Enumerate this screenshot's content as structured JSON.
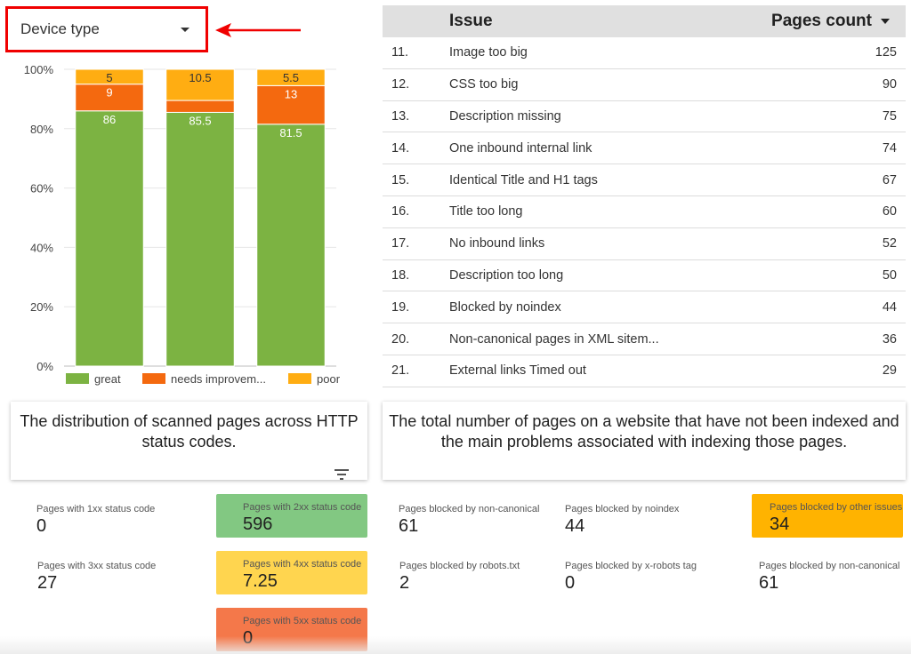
{
  "dropdown": {
    "label": "Device type"
  },
  "chart_data": {
    "type": "bar",
    "stacked": true,
    "categories": [
      "",
      "",
      ""
    ],
    "series": [
      {
        "name": "great",
        "values": [
          86,
          85.5,
          81.5
        ],
        "color": "#7cb342"
      },
      {
        "name": "needs improvem...",
        "values": [
          9,
          4,
          13
        ],
        "color": "#f4690f"
      },
      {
        "name": "poor",
        "values": [
          5,
          10.5,
          5.5
        ],
        "color": "#ffad12"
      }
    ],
    "data_labels": [
      [
        "86",
        "9",
        "5"
      ],
      [
        "85.5",
        "",
        "10.5"
      ],
      [
        "81.5",
        "13",
        "5.5"
      ]
    ],
    "y_ticks": [
      "0%",
      "20%",
      "40%",
      "60%",
      "80%",
      "100%"
    ],
    "ylim": [
      0,
      100
    ],
    "legend_position": "bottom"
  },
  "table": {
    "header": {
      "issue": "Issue",
      "count": "Pages count"
    },
    "rows": [
      {
        "n": "11.",
        "issue": "Image too big",
        "count": "125"
      },
      {
        "n": "12.",
        "issue": "CSS too big",
        "count": "90"
      },
      {
        "n": "13.",
        "issue": "Description missing",
        "count": "75"
      },
      {
        "n": "14.",
        "issue": "One inbound internal link",
        "count": "74"
      },
      {
        "n": "15.",
        "issue": "Identical Title and H1 tags",
        "count": "67"
      },
      {
        "n": "16.",
        "issue": "Title too long",
        "count": "60"
      },
      {
        "n": "17.",
        "issue": "No inbound links",
        "count": "52"
      },
      {
        "n": "18.",
        "issue": "Description too long",
        "count": "50"
      },
      {
        "n": "19.",
        "issue": "Blocked by noindex",
        "count": "44"
      },
      {
        "n": "20.",
        "issue": "Non-canonical pages in XML sitem...",
        "count": "36"
      },
      {
        "n": "21.",
        "issue": "External links Timed out",
        "count": "29"
      }
    ]
  },
  "captions": {
    "left": "The distribution of scanned pages across HTTP status codes.",
    "right": "The total number of pages on a website that have not been indexed and the main problems associated with indexing those pages."
  },
  "status_cards": {
    "s1xx": {
      "label": "Pages with 1xx status code",
      "value": "0"
    },
    "s2xx": {
      "label": "Pages with 2xx status code",
      "value": "596"
    },
    "s3xx": {
      "label": "Pages with 3xx status code",
      "value": "27"
    },
    "s4xx": {
      "label": "Pages with 4xx status code",
      "value": "7.25"
    },
    "s5xx": {
      "label": "Pages with 5xx status code",
      "value": "0"
    }
  },
  "index_cards": {
    "noncanonical1": {
      "label": "Pages blocked by non-canonical",
      "value": "61"
    },
    "noindex": {
      "label": "Pages blocked by noindex",
      "value": "44"
    },
    "other": {
      "label": "Pages blocked by other issues",
      "value": "34"
    },
    "robots": {
      "label": "Pages blocked by robots.txt",
      "value": "2"
    },
    "xrobots": {
      "label": "Pages blocked by x-robots tag",
      "value": "0"
    },
    "noncanonical2": {
      "label": "Pages blocked by non-canonical",
      "value": "61"
    }
  },
  "colors": {
    "highlight_box": "#f00000",
    "card_2xx": "#82c882",
    "card_4xx": "#ffd54f",
    "card_5xx": "#f4784a",
    "card_other": "#ffb300"
  },
  "icons": {
    "dropdown": "chevron-down-icon",
    "sort": "sort-desc-icon",
    "arrow": "arrow-left-icon",
    "filter": "filter-icon"
  }
}
